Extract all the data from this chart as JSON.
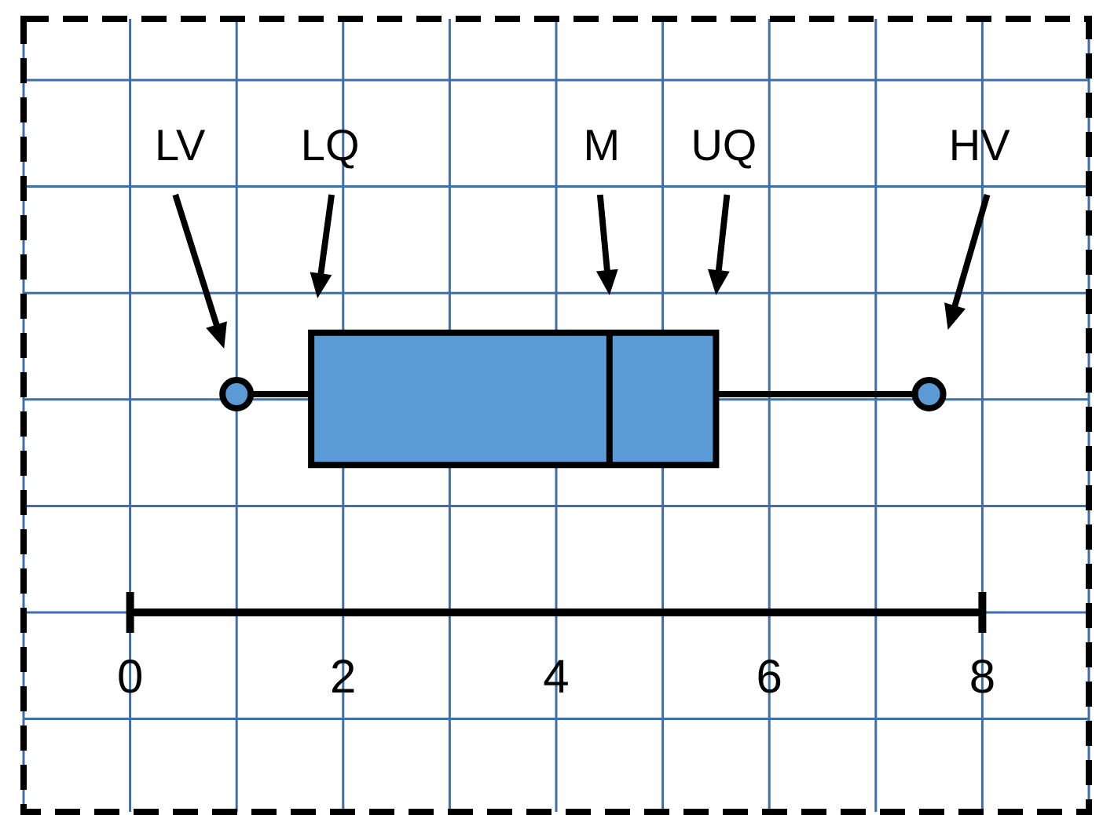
{
  "chart_data": {
    "type": "box",
    "orientation": "horizontal",
    "categories": [
      null
    ],
    "boxes": [
      {
        "low": 1,
        "q1": 1.7,
        "median": 4.5,
        "q3": 5.5,
        "high": 7.5
      }
    ],
    "color": "#5b9bd5",
    "xlim": [
      -1,
      9
    ],
    "xticks": [
      {
        "value": -1,
        "label": null
      },
      0,
      {
        "value": 1,
        "label": null
      },
      2,
      {
        "value": 3,
        "label": null
      },
      4,
      {
        "value": 5,
        "label": null
      },
      6,
      {
        "value": 7,
        "label": null
      },
      8,
      {
        "value": 9,
        "label": null
      }
    ],
    "grid": true,
    "annotations": [
      "LV",
      "LQ",
      "M",
      "UQ",
      "HV"
    ]
  }
}
